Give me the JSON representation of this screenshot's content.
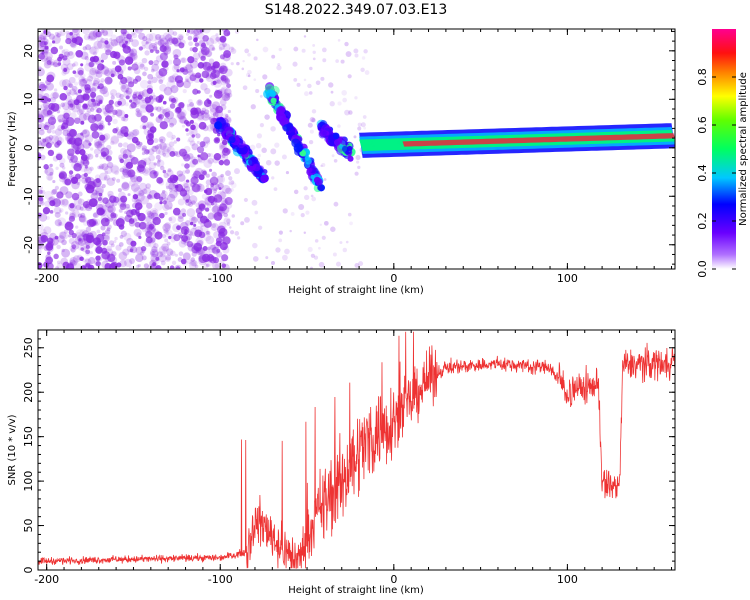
{
  "title": "S148.2022.349.07.03.E13",
  "colors": {
    "snr_line": "#ee3333",
    "speckle": "#8a2be2",
    "band_core": "#e03040",
    "frame": "#000000"
  },
  "charts": [
    {
      "id": "spectrogram",
      "type": "heatmap",
      "xlabel": "Height of straight line (km)",
      "ylabel": "Frequency (Hz)",
      "xlim": [
        -205,
        162
      ],
      "ylim": [
        -25,
        24.5
      ],
      "xticks": [
        -200,
        -100,
        0,
        100
      ],
      "xtick_labels": [
        "-200",
        "-100",
        "0",
        "100"
      ],
      "yticks": [
        -20,
        -10,
        0,
        10,
        20
      ],
      "ytick_labels": [
        "-20",
        "-10",
        "0",
        "10",
        "20"
      ],
      "colorbar": {
        "label": "Normalized spectral amplitude",
        "range": [
          0,
          1
        ],
        "ticks": [
          0.0,
          0.2,
          0.4,
          0.6,
          0.8
        ],
        "tick_labels": [
          "0.0",
          "0.2",
          "0.4",
          "0.6",
          "0.8"
        ],
        "colormap": [
          "#ffffff",
          "#8000ff",
          "#0000ff",
          "#00ffff",
          "#00ff00",
          "#ffff00",
          "#ff8000",
          "#ff0040",
          "#ff0090"
        ]
      },
      "features": {
        "noise_region_x": [
          -205,
          -95
        ],
        "streak_segments": [
          {
            "x": [
              -100,
              -75
            ],
            "y": [
              5,
              -6
            ]
          },
          {
            "x": [
              -72,
              -42
            ],
            "y": [
              12,
              -8
            ]
          },
          {
            "x": [
              -42,
              -25
            ],
            "y": [
              4,
              -1
            ]
          }
        ],
        "carrier_band": {
          "x": [
            -20,
            162
          ],
          "y_start": 0.5,
          "y_end": 2.5
        }
      }
    },
    {
      "id": "snr",
      "type": "line",
      "xlabel": "Height of straight line (km)",
      "ylabel": "SNR (10 * v/v)",
      "xlim": [
        -205,
        162
      ],
      "ylim": [
        0,
        270
      ],
      "xticks": [
        -200,
        -100,
        0,
        100
      ],
      "xtick_labels": [
        "-200",
        "-100",
        "0",
        "100"
      ],
      "yticks": [
        0,
        50,
        100,
        150,
        200,
        250
      ],
      "ytick_labels": [
        "0",
        "50",
        "100",
        "150",
        "200",
        "250"
      ],
      "profile": [
        [
          -205,
          10
        ],
        [
          -100,
          14
        ],
        [
          -85,
          20
        ],
        [
          -80,
          55
        ],
        [
          -72,
          45
        ],
        [
          -65,
          25
        ],
        [
          -55,
          10
        ],
        [
          -48,
          45
        ],
        [
          -40,
          75
        ],
        [
          -30,
          100
        ],
        [
          -20,
          135
        ],
        [
          -10,
          155
        ],
        [
          0,
          170
        ],
        [
          10,
          190
        ],
        [
          20,
          215
        ],
        [
          30,
          228
        ],
        [
          60,
          232
        ],
        [
          90,
          228
        ],
        [
          100,
          200
        ],
        [
          110,
          205
        ],
        [
          118,
          210
        ],
        [
          120,
          95
        ],
        [
          130,
          95
        ],
        [
          132,
          230
        ],
        [
          162,
          235
        ]
      ]
    }
  ]
}
